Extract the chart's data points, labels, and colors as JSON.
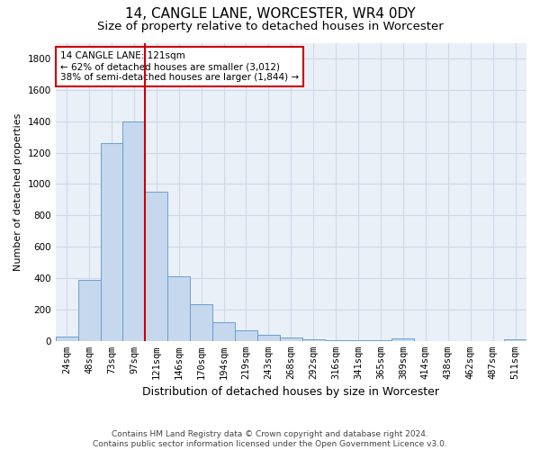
{
  "title": "14, CANGLE LANE, WORCESTER, WR4 0DY",
  "subtitle": "Size of property relative to detached houses in Worcester",
  "xlabel": "Distribution of detached houses by size in Worcester",
  "ylabel": "Number of detached properties",
  "bar_labels": [
    "24sqm",
    "48sqm",
    "73sqm",
    "97sqm",
    "121sqm",
    "146sqm",
    "170sqm",
    "194sqm",
    "219sqm",
    "243sqm",
    "268sqm",
    "292sqm",
    "316sqm",
    "341sqm",
    "365sqm",
    "389sqm",
    "414sqm",
    "438sqm",
    "462sqm",
    "487sqm",
    "511sqm"
  ],
  "bar_values": [
    25,
    390,
    1260,
    1400,
    950,
    410,
    235,
    120,
    65,
    40,
    20,
    10,
    5,
    3,
    2,
    15,
    0,
    0,
    0,
    0,
    10
  ],
  "bar_color": "#c5d8ee",
  "bar_edge_color": "#6a9fd0",
  "vline_color": "#cc0000",
  "vline_x": 4,
  "annotation_text": "14 CANGLE LANE: 121sqm\n← 62% of detached houses are smaller (3,012)\n38% of semi-detached houses are larger (1,844) →",
  "annotation_box_color": "#ffffff",
  "annotation_box_edge": "#cc0000",
  "ylim": [
    0,
    1900
  ],
  "yticks": [
    0,
    200,
    400,
    600,
    800,
    1000,
    1200,
    1400,
    1600,
    1800
  ],
  "grid_color": "#d0d8e8",
  "bg_color": "#eaf0f8",
  "footer_text": "Contains HM Land Registry data © Crown copyright and database right 2024.\nContains public sector information licensed under the Open Government Licence v3.0.",
  "title_fontsize": 11,
  "subtitle_fontsize": 9.5,
  "ylabel_fontsize": 8,
  "xlabel_fontsize": 9,
  "tick_fontsize": 7.5,
  "footer_fontsize": 6.5,
  "annotation_fontsize": 7.5
}
